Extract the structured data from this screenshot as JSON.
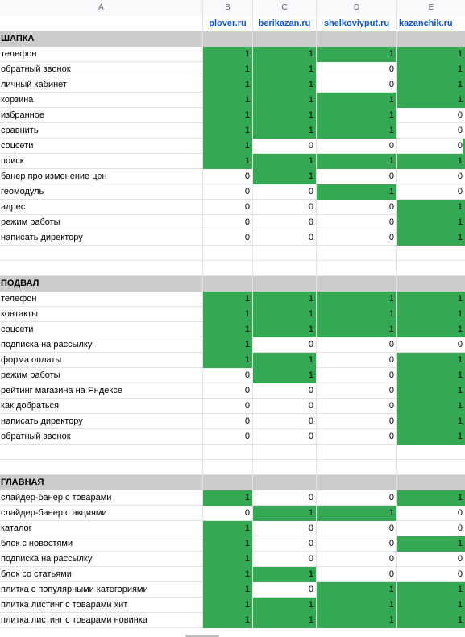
{
  "columns": [
    "A",
    "B",
    "C",
    "D",
    "E"
  ],
  "sites": [
    "plover.ru",
    "berikazan.ru",
    "shelkoviyput.ru",
    "kazanchik.ru"
  ],
  "sections": [
    {
      "title": "ШАПКА",
      "rows": [
        {
          "label": "телефон",
          "values": [
            "1",
            "1",
            "1",
            "1"
          ]
        },
        {
          "label": "обратный звонок",
          "values": [
            "1",
            "1",
            "0",
            "1"
          ]
        },
        {
          "label": "личный кабинет",
          "values": [
            "1",
            "1",
            "0",
            "1"
          ]
        },
        {
          "label": "корзина",
          "values": [
            "1",
            "1",
            "1",
            "1"
          ]
        },
        {
          "label": "избранное",
          "values": [
            "1",
            "1",
            "1",
            "0"
          ]
        },
        {
          "label": "сравнить",
          "values": [
            "1",
            "1",
            "1",
            "0"
          ]
        },
        {
          "label": "соцсети",
          "values": [
            "1",
            "0",
            "0",
            "0"
          ]
        },
        {
          "label": "поиск",
          "values": [
            "1",
            "1",
            "1",
            "1"
          ]
        },
        {
          "label": "банер про изменение цен",
          "values": [
            "0",
            "1",
            "0",
            "0"
          ]
        },
        {
          "label": "геомодуль",
          "values": [
            "0",
            "0",
            "1",
            "0"
          ]
        },
        {
          "label": "адрес",
          "values": [
            "0",
            "0",
            "0",
            "1"
          ]
        },
        {
          "label": "режим работы",
          "values": [
            "0",
            "0",
            "0",
            "1"
          ]
        },
        {
          "label": "написать директору",
          "values": [
            "0",
            "0",
            "0",
            "1"
          ]
        }
      ]
    },
    {
      "title": "ПОДВАЛ",
      "rows": [
        {
          "label": "телефон",
          "values": [
            "1",
            "1",
            "1",
            "1"
          ]
        },
        {
          "label": "контакты",
          "values": [
            "1",
            "1",
            "1",
            "1"
          ]
        },
        {
          "label": "соцсети",
          "values": [
            "1",
            "1",
            "1",
            "1"
          ]
        },
        {
          "label": "подписка на рассылку",
          "values": [
            "1",
            "0",
            "0",
            "0"
          ]
        },
        {
          "label": "форма оплаты",
          "values": [
            "1",
            "1",
            "0",
            "1"
          ]
        },
        {
          "label": "режим работы",
          "values": [
            "0",
            "1",
            "0",
            "1"
          ]
        },
        {
          "label": "рейтинг магазина на Яндексе",
          "values": [
            "0",
            "0",
            "0",
            "1"
          ]
        },
        {
          "label": "как добраться",
          "values": [
            "0",
            "0",
            "0",
            "1"
          ]
        },
        {
          "label": "написать директору",
          "values": [
            "0",
            "0",
            "0",
            "1"
          ]
        },
        {
          "label": "обратный звонок",
          "values": [
            "0",
            "0",
            "0",
            "1"
          ]
        }
      ]
    },
    {
      "title": "ГЛАВНАЯ",
      "rows": [
        {
          "label": "слайдер-банер с товарами",
          "values": [
            "1",
            "0",
            "0",
            "1"
          ]
        },
        {
          "label": "слайдер-банер с акциями",
          "values": [
            "0",
            "1",
            "1",
            "0"
          ]
        },
        {
          "label": "каталог",
          "values": [
            "1",
            "0",
            "0",
            "0"
          ]
        },
        {
          "label": "блок с новостями",
          "values": [
            "1",
            "0",
            "0",
            "1"
          ]
        },
        {
          "label": "подписка на рассылку",
          "values": [
            "1",
            "0",
            "0",
            "0"
          ]
        },
        {
          "label": "блок со статьями",
          "values": [
            "1",
            "1",
            "0",
            "0"
          ]
        },
        {
          "label": "плитка с популярными категориями",
          "values": [
            "1",
            "0",
            "1",
            "1"
          ]
        },
        {
          "label": "плитка листинг с товарами хит",
          "values": [
            "1",
            "1",
            "1",
            "1"
          ]
        },
        {
          "label": "плитка листинг с товарами новинка",
          "values": [
            "1",
            "1",
            "1",
            "1"
          ]
        }
      ]
    }
  ],
  "colors": {
    "true": "#34a853",
    "header_bg": "#cccccc",
    "link": "#1155cc"
  }
}
